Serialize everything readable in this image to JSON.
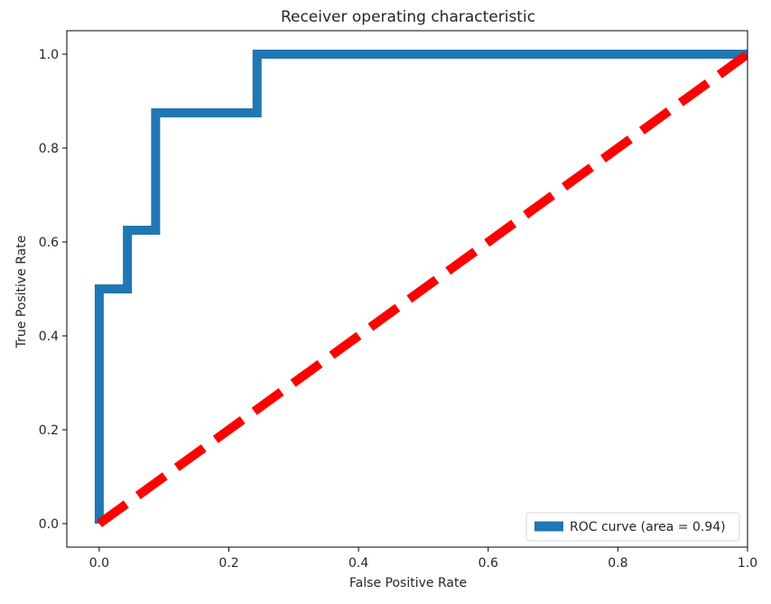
{
  "chart_data": {
    "type": "line",
    "title": "Receiver operating characteristic",
    "xlabel": "False Positive Rate",
    "ylabel": "True Positive Rate",
    "xlim": [
      -0.05,
      1.0
    ],
    "ylim": [
      -0.05,
      1.05
    ],
    "xticks": [
      0.0,
      0.2,
      0.4,
      0.6,
      0.8,
      1.0
    ],
    "xtick_labels": [
      "0.0",
      "0.2",
      "0.4",
      "0.6",
      "0.8",
      "1.0"
    ],
    "yticks": [
      0.0,
      0.2,
      0.4,
      0.6,
      0.8,
      1.0
    ],
    "ytick_labels": [
      "0.0",
      "0.2",
      "0.4",
      "0.6",
      "0.8",
      "1.0"
    ],
    "grid": false,
    "legend_position": "lower-right",
    "series": [
      {
        "name": "ROC curve (area = 0.94)",
        "color": "#1f77b4",
        "style": "solid",
        "x": [
          0.0,
          0.0,
          0.0,
          0.0435,
          0.0435,
          0.087,
          0.087,
          0.087,
          0.2435,
          0.2435,
          1.0
        ],
        "y": [
          0.0,
          0.125,
          0.5,
          0.5,
          0.625,
          0.625,
          0.75,
          0.875,
          0.875,
          1.0,
          1.0
        ]
      },
      {
        "name": "",
        "color": "#ff0000",
        "style": "dashed",
        "x": [
          0.0,
          1.0
        ],
        "y": [
          0.0,
          1.0
        ]
      }
    ]
  }
}
